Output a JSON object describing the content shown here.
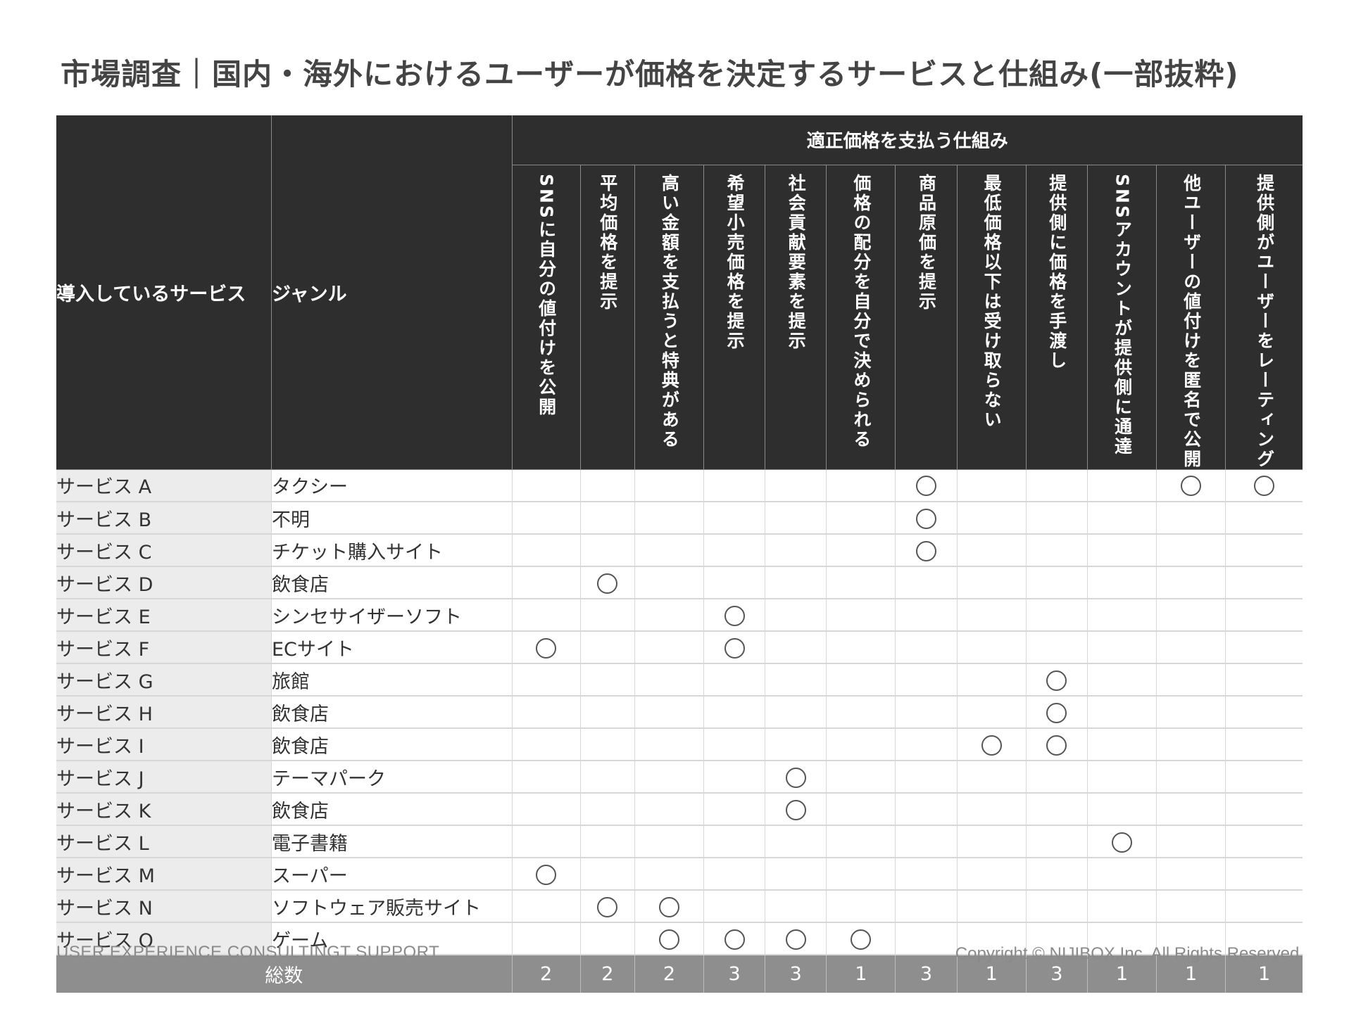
{
  "title": "市場調査｜国内・海外におけるユーザーが価格を決定するサービスと仕組み(一部抜粋)",
  "header": {
    "service_label": "導入しているサービス",
    "genre_label": "ジャンル",
    "group_label": "適正価格を支払う仕組み",
    "columns": [
      "SNSに自分の値付けを公開",
      "平均価格を提示",
      "高い金額を支払うと特典がある",
      "希望小売価格を提示",
      "社会貢献要素を提示",
      "価格の配分を自分で決められる",
      "商品原価を提示",
      "最低価格以下は受け取らない",
      "提供側に価格を手渡し",
      "SNSアカウントが提供側に通達",
      "他ユーザーの値付けを匿名で公開",
      "提供側がユーザーをレーティング"
    ]
  },
  "rows": [
    {
      "service": "サービス A",
      "genre": "タクシー",
      "marks": [
        6,
        10,
        11
      ]
    },
    {
      "service": "サービス B",
      "genre": "不明",
      "marks": [
        6
      ]
    },
    {
      "service": "サービス C",
      "genre": "チケット購入サイト",
      "marks": [
        6
      ]
    },
    {
      "service": "サービス D",
      "genre": "飲食店",
      "marks": [
        1
      ]
    },
    {
      "service": "サービス E",
      "genre": "シンセサイザーソフト",
      "marks": [
        3
      ]
    },
    {
      "service": "サービス F",
      "genre": "ECサイト",
      "marks": [
        0,
        3
      ]
    },
    {
      "service": "サービス G",
      "genre": "旅館",
      "marks": [
        8
      ]
    },
    {
      "service": "サービス H",
      "genre": "飲食店",
      "marks": [
        8
      ]
    },
    {
      "service": "サービス I",
      "genre": "飲食店",
      "marks": [
        7,
        8
      ]
    },
    {
      "service": "サービス J",
      "genre": "テーマパーク",
      "marks": [
        4
      ]
    },
    {
      "service": "サービス K",
      "genre": "飲食店",
      "marks": [
        4
      ]
    },
    {
      "service": "サービス L",
      "genre": "電子書籍",
      "marks": [
        9
      ]
    },
    {
      "service": "サービス M",
      "genre": "スーパー",
      "marks": [
        0
      ]
    },
    {
      "service": "サービス N",
      "genre": "ソフトウェア販売サイト",
      "marks": [
        1,
        2
      ]
    },
    {
      "service": "サービス O",
      "genre": "ゲーム",
      "marks": [
        2,
        3,
        4,
        5
      ]
    }
  ],
  "totals": {
    "label": "総数",
    "values": [
      "2",
      "2",
      "2",
      "3",
      "3",
      "1",
      "3",
      "1",
      "3",
      "1",
      "1",
      "1"
    ]
  },
  "footer": {
    "left": "USER EXPERIENCE CONSULTINGT SUPPORT",
    "right": "Copyright © NIJIBOX,Inc. All Rights Reserved."
  },
  "colors": {
    "header_bg": "#2e2e2e",
    "total_bg": "#8e8e8e",
    "service_cell_bg": "#ececec",
    "grid": "#d7d7d7",
    "mark_stroke": "#555555"
  },
  "icons": {
    "mark": "circle-mark-icon"
  }
}
